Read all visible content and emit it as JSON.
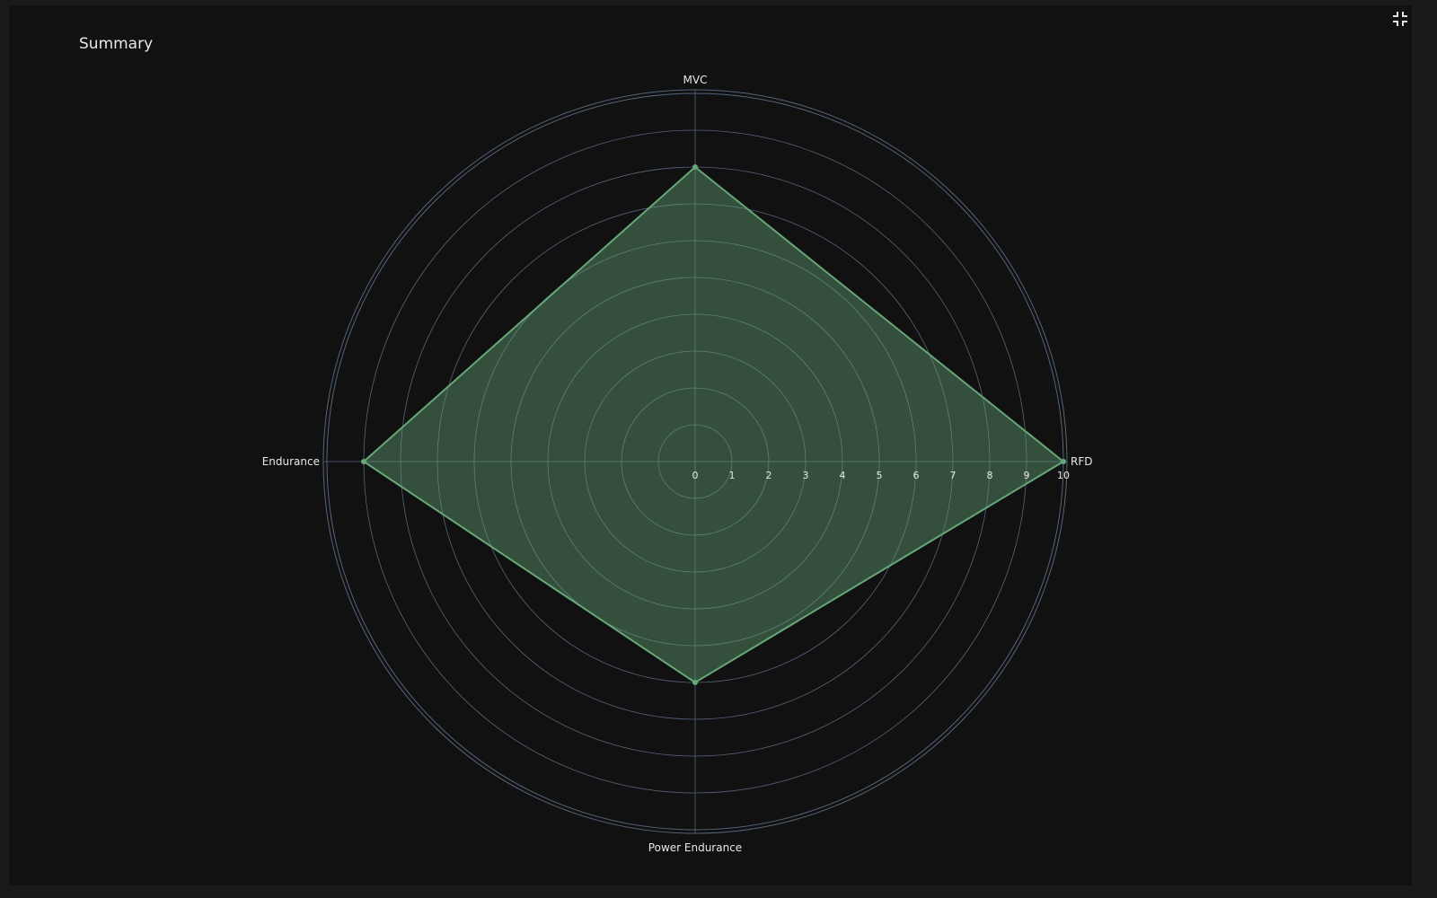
{
  "panel": {
    "title": "Summary",
    "fullscreen_icon": "exit-fullscreen-icon"
  },
  "chart_data": {
    "type": "radar",
    "title": "",
    "axes": [
      "MVC",
      "RFD",
      "Power Endurance",
      "Endurance"
    ],
    "series": [
      {
        "values": [
          8,
          10,
          6,
          9
        ],
        "color": "#66a878",
        "fill": "rgba(102,168,120,0.42)"
      }
    ],
    "radial_range": [
      0,
      10
    ],
    "radial_ticks": [
      "0",
      "1",
      "2",
      "3",
      "4",
      "5",
      "6",
      "7",
      "8",
      "9",
      "10"
    ],
    "grid": true,
    "grid_color": "#55647a",
    "background": "#111111"
  }
}
